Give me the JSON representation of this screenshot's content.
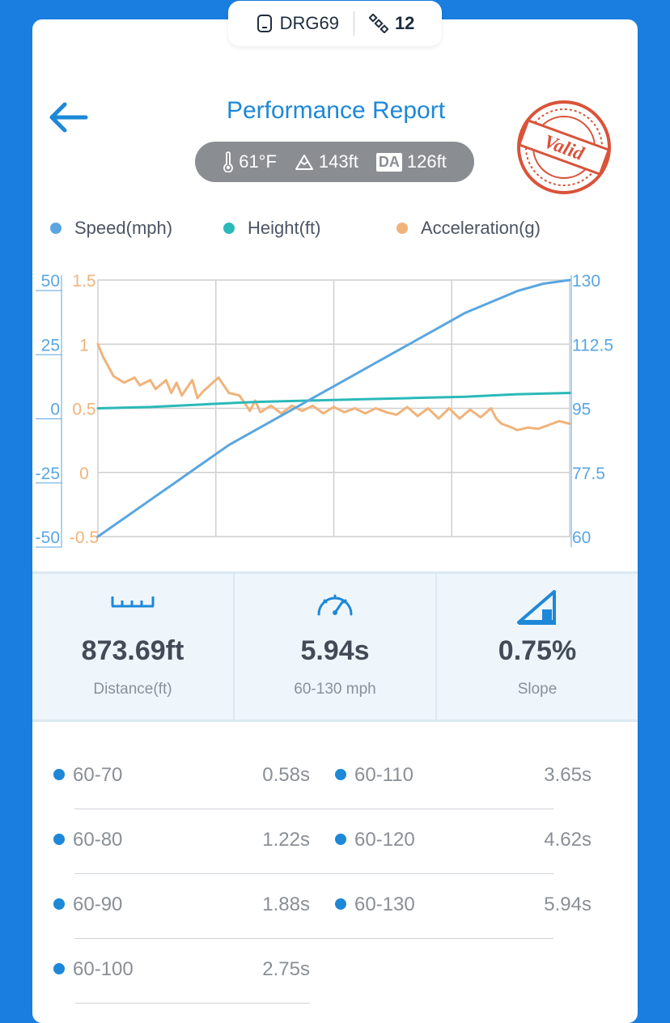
{
  "device": {
    "name": "DRG69",
    "satellites": "12",
    "device_icon": "phone-icon",
    "sat_icon": "satellite-icon"
  },
  "header": {
    "title": "Performance Report",
    "back_icon": "back-arrow-icon"
  },
  "conditions": {
    "temperature": "61°F",
    "altitude": "143ft",
    "da_badge": "DA",
    "density_altitude": "126ft"
  },
  "stamp": {
    "text": "Valid",
    "color": "#d9533a"
  },
  "legend": [
    {
      "label": "Speed(mph)",
      "color": "#5aa6e0"
    },
    {
      "label": "Height(ft)",
      "color": "#2bb9b9"
    },
    {
      "label": "Acceleration(g)",
      "color": "#f0b37a"
    }
  ],
  "stats": [
    {
      "value": "873.69ft",
      "label": "Distance(ft)",
      "icon": "ruler-icon"
    },
    {
      "value": "5.94s",
      "label": "60-130 mph",
      "icon": "speedometer-icon"
    },
    {
      "value": "0.75%",
      "label": "Slope",
      "icon": "slope-icon"
    }
  ],
  "splits": [
    {
      "range": "60-70",
      "time": "0.58s"
    },
    {
      "range": "60-80",
      "time": "1.22s"
    },
    {
      "range": "60-90",
      "time": "1.88s"
    },
    {
      "range": "60-100",
      "time": "2.75s"
    },
    {
      "range": "60-110",
      "time": "3.65s"
    },
    {
      "range": "60-120",
      "time": "4.62s"
    },
    {
      "range": "60-130",
      "time": "5.94s"
    }
  ],
  "chart_data": {
    "type": "line",
    "axes": {
      "height_ticks": [
        "50",
        "25",
        "0",
        "-25",
        "-50"
      ],
      "acceleration_ticks": [
        "1.5",
        "1",
        "0.5",
        "0",
        "-0.5"
      ],
      "speed_ticks": [
        "130",
        "112.5",
        "95",
        "77.5",
        "60"
      ],
      "height_range": [
        -50,
        50
      ],
      "acceleration_range": [
        -0.5,
        1.5
      ],
      "speed_range": [
        60,
        130
      ],
      "grid": true
    },
    "series": [
      {
        "name": "Speed(mph)",
        "color": "#5aa6e0",
        "axis": "speed",
        "points": [
          [
            0,
            60
          ],
          [
            0.5,
            65
          ],
          [
            1,
            70
          ],
          [
            1.5,
            75
          ],
          [
            2,
            80
          ],
          [
            2.5,
            85
          ],
          [
            3,
            89
          ],
          [
            3.5,
            93
          ],
          [
            4,
            97
          ],
          [
            4.5,
            101
          ],
          [
            5,
            105
          ],
          [
            5.5,
            109
          ],
          [
            6,
            113
          ],
          [
            6.5,
            117
          ],
          [
            7,
            121
          ],
          [
            7.5,
            124
          ],
          [
            8,
            127
          ],
          [
            8.5,
            129
          ],
          [
            9,
            130
          ]
        ]
      },
      {
        "name": "Height(ft)",
        "color": "#2bb9b9",
        "axis": "height",
        "points": [
          [
            0,
            0
          ],
          [
            1,
            0.5
          ],
          [
            2,
            1.5
          ],
          [
            3,
            2.5
          ],
          [
            4,
            3
          ],
          [
            5,
            3.5
          ],
          [
            6,
            4
          ],
          [
            7,
            4.5
          ],
          [
            8,
            5.5
          ],
          [
            9,
            6
          ]
        ]
      },
      {
        "name": "Acceleration(g)",
        "color": "#f0b37a",
        "axis": "acceleration",
        "points": [
          [
            0,
            1.0
          ],
          [
            0.1,
            0.9
          ],
          [
            0.3,
            0.75
          ],
          [
            0.5,
            0.7
          ],
          [
            0.7,
            0.74
          ],
          [
            0.8,
            0.68
          ],
          [
            1.0,
            0.72
          ],
          [
            1.1,
            0.65
          ],
          [
            1.3,
            0.72
          ],
          [
            1.4,
            0.62
          ],
          [
            1.5,
            0.7
          ],
          [
            1.6,
            0.6
          ],
          [
            1.8,
            0.72
          ],
          [
            1.9,
            0.58
          ],
          [
            2.0,
            0.63
          ],
          [
            2.3,
            0.74
          ],
          [
            2.5,
            0.62
          ],
          [
            2.7,
            0.6
          ],
          [
            2.9,
            0.48
          ],
          [
            3.0,
            0.56
          ],
          [
            3.1,
            0.47
          ],
          [
            3.3,
            0.52
          ],
          [
            3.5,
            0.46
          ],
          [
            3.7,
            0.52
          ],
          [
            3.9,
            0.48
          ],
          [
            4.1,
            0.52
          ],
          [
            4.3,
            0.46
          ],
          [
            4.5,
            0.51
          ],
          [
            4.7,
            0.47
          ],
          [
            4.9,
            0.5
          ],
          [
            5.1,
            0.46
          ],
          [
            5.3,
            0.5
          ],
          [
            5.5,
            0.47
          ],
          [
            5.7,
            0.45
          ],
          [
            5.9,
            0.51
          ],
          [
            6.1,
            0.44
          ],
          [
            6.3,
            0.5
          ],
          [
            6.5,
            0.42
          ],
          [
            6.7,
            0.5
          ],
          [
            6.9,
            0.42
          ],
          [
            7.1,
            0.49
          ],
          [
            7.3,
            0.43
          ],
          [
            7.5,
            0.5
          ],
          [
            7.6,
            0.42
          ],
          [
            7.7,
            0.38
          ],
          [
            7.9,
            0.35
          ],
          [
            8.0,
            0.33
          ],
          [
            8.2,
            0.35
          ],
          [
            8.4,
            0.34
          ],
          [
            8.6,
            0.37
          ],
          [
            8.8,
            0.4
          ],
          [
            9.0,
            0.38
          ]
        ]
      }
    ]
  }
}
